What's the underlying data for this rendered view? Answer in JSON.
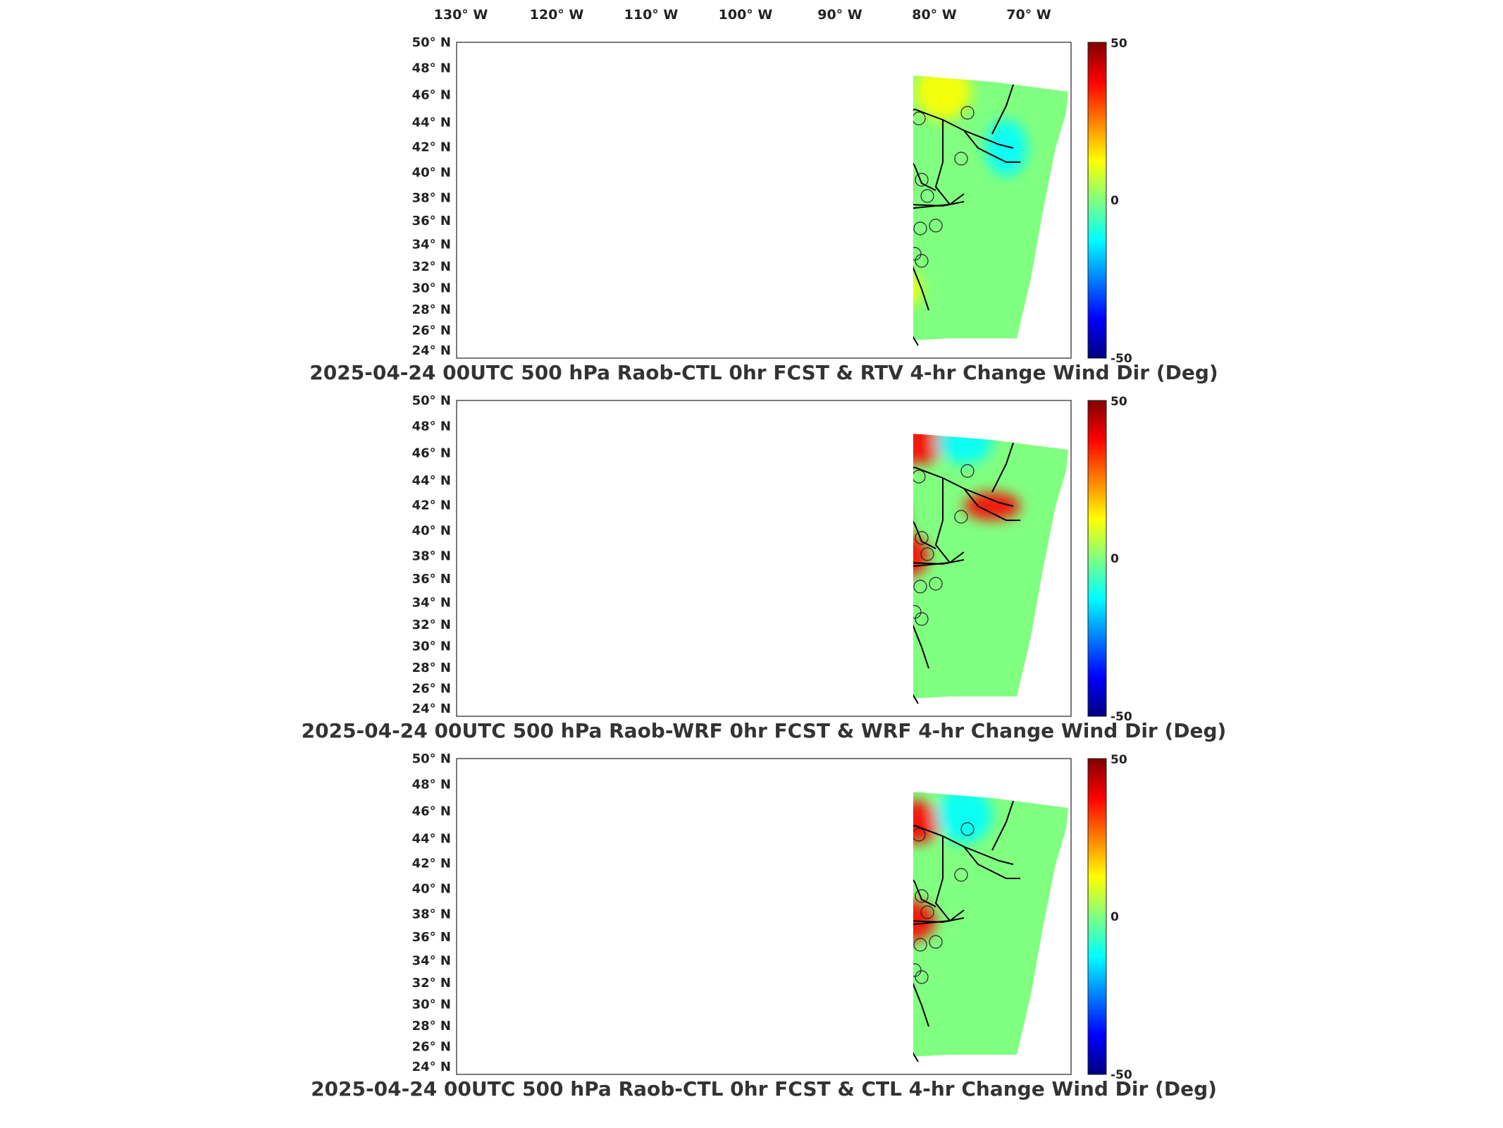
{
  "lon_labels": [
    "130° W",
    "120° W",
    "110° W",
    "100° W",
    "90° W",
    "80° W",
    "70° W"
  ],
  "lat_labels": [
    "50° N",
    "48° N",
    "46° N",
    "44° N",
    "42° N",
    "40° N",
    "38° N",
    "36° N",
    "34° N",
    "32° N",
    "30° N",
    "28° N",
    "26° N",
    "24° N"
  ],
  "colorbar": {
    "max_label": "50",
    "mid_label": "0",
    "min_label": "-50",
    "colormap": "jet"
  },
  "colors": {
    "max": "#800000",
    "high": "#ff0000",
    "mid_high": "#ffff00",
    "mid": "#80ff80",
    "mid_low": "#00ffff",
    "low": "#0000ff",
    "min": "#000080",
    "land_outline": "#000000"
  },
  "panels": [
    {
      "title": "2025-04-24 00UTC 500 hPa Raob-CTL 0hr FCST & RTV 4-hr Change Wind Dir (Deg)"
    },
    {
      "title": "2025-04-24 00UTC 500 hPa Raob-WRF 0hr FCST & WRF 4-hr Change Wind Dir (Deg)"
    },
    {
      "title": "2025-04-24 00UTC 500 hPa Raob-CTL 0hr FCST & CTL 4-hr Change Wind Dir (Deg)"
    }
  ]
}
